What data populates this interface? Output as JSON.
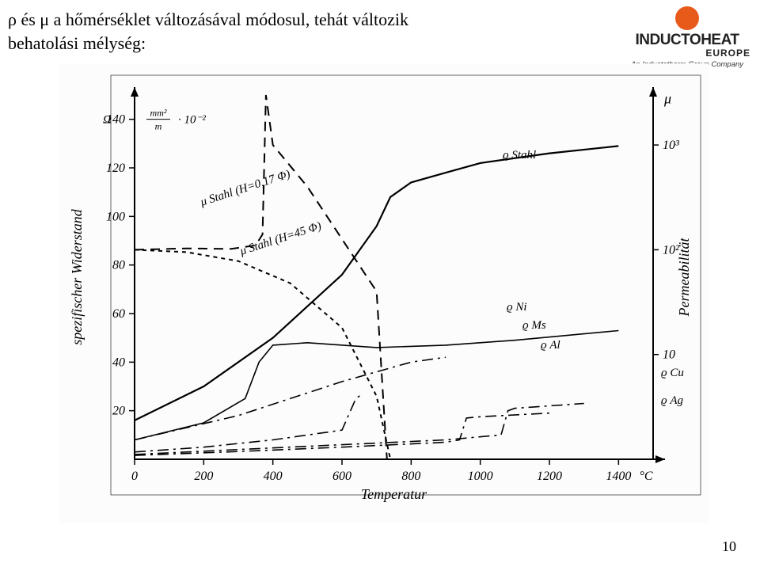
{
  "heading": {
    "line1": "ρ és  μ a hőmérséklet változásával módosul, tehát változik",
    "line2": "behatolási mélység:"
  },
  "logo": {
    "brand": "INDUCTOHEAT",
    "region": "EUROPE",
    "tagline": "An Inductotherm Group Company",
    "dot_color": "#e85a1a"
  },
  "page_number": "10",
  "chart": {
    "type": "line",
    "background_color": "#fcfcfc",
    "axis_color": "#000000",
    "line_color": "#000000",
    "x": {
      "label": "Temperatur",
      "unit": "°C",
      "min": 0,
      "max": 1500,
      "ticks": [
        0,
        200,
        400,
        600,
        800,
        1000,
        1200,
        1400
      ]
    },
    "y_left": {
      "label": "spezifischer Widerstand",
      "unit_tex": "Ω mm² / m · 10⁻²",
      "min": 0,
      "max": 150,
      "ticks": [
        0,
        20,
        40,
        60,
        80,
        100,
        120,
        140
      ]
    },
    "y_right": {
      "label": "Permeabilität",
      "symbol": "μ",
      "ticks_log": [
        10,
        100,
        1000
      ],
      "tick_labels": [
        "10",
        "10²",
        "10³"
      ]
    },
    "series": {
      "rho_stahl": {
        "label": "ϱ_Stahl",
        "dash": "solid",
        "width": 2.2,
        "data": [
          [
            0,
            16
          ],
          [
            200,
            30
          ],
          [
            400,
            50
          ],
          [
            600,
            76
          ],
          [
            700,
            96
          ],
          [
            740,
            108
          ],
          [
            800,
            114
          ],
          [
            900,
            118
          ],
          [
            1000,
            122
          ],
          [
            1200,
            126
          ],
          [
            1400,
            129
          ]
        ]
      },
      "rho_ni": {
        "label": "ϱ_Ni",
        "dash": "solid",
        "width": 1.6,
        "data": [
          [
            0,
            8
          ],
          [
            200,
            15
          ],
          [
            320,
            25
          ],
          [
            360,
            40
          ],
          [
            400,
            47
          ],
          [
            500,
            48
          ],
          [
            700,
            46
          ],
          [
            900,
            47
          ],
          [
            1100,
            49
          ],
          [
            1400,
            53
          ]
        ]
      },
      "rho_ms": {
        "label": "ϱ_Ms",
        "dash": "dash-dot",
        "width": 1.6,
        "data": [
          [
            0,
            8
          ],
          [
            300,
            18
          ],
          [
            600,
            32
          ],
          [
            800,
            40
          ],
          [
            900,
            42
          ]
        ]
      },
      "rho_al": {
        "label": "ϱ_Al",
        "dash": "dash-dot",
        "width": 1.6,
        "data": [
          [
            0,
            3
          ],
          [
            200,
            5
          ],
          [
            400,
            8
          ],
          [
            600,
            12
          ],
          [
            640,
            25
          ],
          [
            660,
            27
          ]
        ]
      },
      "rho_cu": {
        "label": "ϱ_Cu",
        "dash": "dash-dot",
        "width": 1.6,
        "data": [
          [
            0,
            2
          ],
          [
            300,
            4
          ],
          [
            600,
            6
          ],
          [
            900,
            8
          ],
          [
            1060,
            10
          ],
          [
            1080,
            20
          ],
          [
            1100,
            21
          ],
          [
            1300,
            23
          ]
        ]
      },
      "rho_ag": {
        "label": "ϱ_Ag",
        "dash": "dash-dot",
        "width": 1.6,
        "data": [
          [
            0,
            1.6
          ],
          [
            300,
            3.2
          ],
          [
            600,
            5
          ],
          [
            900,
            7
          ],
          [
            940,
            8
          ],
          [
            960,
            17
          ],
          [
            1000,
            17.5
          ],
          [
            1200,
            19
          ]
        ]
      },
      "mu_stahl_low": {
        "label": "μ Stahl (H=0,17 Φ)",
        "dash": "long-dash",
        "width": 2,
        "right_axis": true,
        "data": [
          [
            0,
            100
          ],
          [
            150,
            103
          ],
          [
            280,
            102
          ],
          [
            350,
            110
          ],
          [
            370,
            140
          ],
          [
            380,
            3000
          ],
          [
            400,
            1000
          ],
          [
            500,
            400
          ],
          [
            700,
            40
          ],
          [
            730,
            1
          ]
        ]
      },
      "mu_stahl_high": {
        "label": "μ Stahl (H=45 Φ)",
        "dash": "short-dash",
        "width": 2,
        "right_axis": true,
        "data": [
          [
            0,
            100
          ],
          [
            150,
            95
          ],
          [
            300,
            78
          ],
          [
            450,
            48
          ],
          [
            600,
            18
          ],
          [
            700,
            4
          ],
          [
            740,
            1
          ]
        ]
      }
    },
    "label_positions": {
      "rho_stahl": [
        560,
        120
      ],
      "rho_ni": [
        565,
        312
      ],
      "rho_ms": [
        585,
        335
      ],
      "rho_al": [
        608,
        360
      ],
      "rho_cu": [
        760,
        395
      ],
      "rho_ag": [
        760,
        430
      ],
      "mu_stahl_low": [
        180,
        180
      ],
      "mu_stahl_high": [
        230,
        242
      ],
      "mu_symbol": [
        775,
        135
      ],
      "y_right_1000": [
        775,
        160
      ],
      "y_right_100": [
        775,
        300
      ],
      "y_right_10": [
        775,
        395
      ]
    },
    "fonts": {
      "axis_label": 18,
      "tick": 16,
      "series_label": 15,
      "unit": 15
    }
  }
}
